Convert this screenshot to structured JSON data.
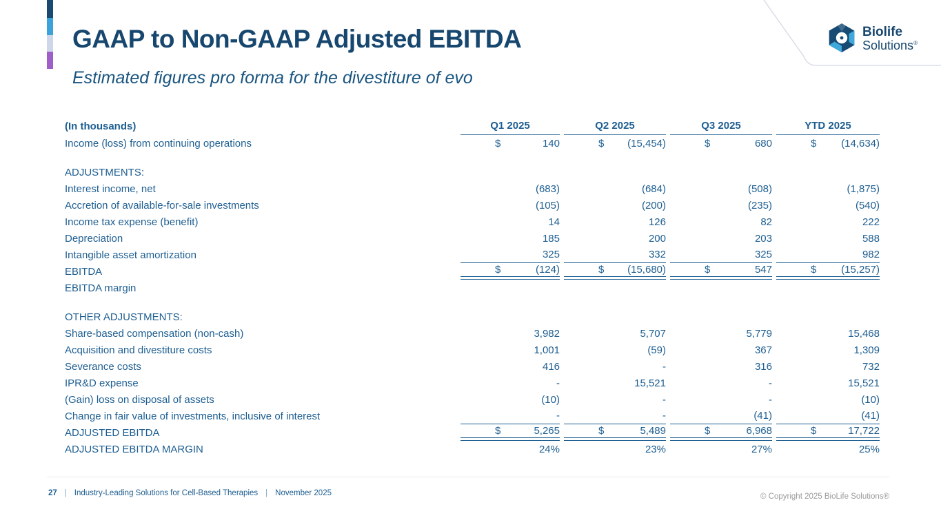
{
  "slide": {
    "title": "GAAP to Non-GAAP Adjusted EBITDA",
    "subtitle": "Estimated figures pro forma for the divestiture of evo"
  },
  "logo": {
    "icon": "biolife-hexagon-icon",
    "line1": "Biolife",
    "line2": "Solutions",
    "registered_mark": "®"
  },
  "table": {
    "unit_label": "(In thousands)",
    "columns": [
      "Q1 2025",
      "Q2 2025",
      "Q3 2025",
      "YTD 2025"
    ],
    "rows": [
      {
        "type": "money",
        "label": "Income (loss) from continuing operations",
        "values": [
          "140",
          "(15,454)",
          "680",
          "(14,634)"
        ]
      },
      {
        "type": "spacer"
      },
      {
        "type": "section",
        "label": "ADJUSTMENTS:"
      },
      {
        "type": "plain",
        "label": "Interest income, net",
        "values": [
          "(683)",
          "(684)",
          "(508)",
          "(1,875)"
        ]
      },
      {
        "type": "plain",
        "label": "Accretion of available-for-sale investments",
        "values": [
          "(105)",
          "(200)",
          "(235)",
          "(540)"
        ]
      },
      {
        "type": "plain",
        "label": "Income tax expense (benefit)",
        "values": [
          "14",
          "126",
          "82",
          "222"
        ]
      },
      {
        "type": "plain",
        "label": "Depreciation",
        "values": [
          "185",
          "200",
          "203",
          "588"
        ]
      },
      {
        "type": "plain",
        "label": "Intangible asset amortization",
        "values": [
          "325",
          "332",
          "325",
          "982"
        ],
        "rule_bottom": true
      },
      {
        "type": "total",
        "label": "EBITDA",
        "values": [
          "(124)",
          "(15,680)",
          "547",
          "(15,257)"
        ]
      },
      {
        "type": "label-only",
        "label": "EBITDA margin"
      },
      {
        "type": "spacer"
      },
      {
        "type": "section",
        "label": "OTHER ADJUSTMENTS:"
      },
      {
        "type": "plain",
        "label": "Share-based compensation (non-cash)",
        "values": [
          "3,982",
          "5,707",
          "5,779",
          "15,468"
        ]
      },
      {
        "type": "plain",
        "label": "Acquisition and divestiture costs",
        "values": [
          "1,001",
          "(59)",
          "367",
          "1,309"
        ]
      },
      {
        "type": "plain",
        "label": "Severance costs",
        "values": [
          "416",
          "-",
          "316",
          "732"
        ]
      },
      {
        "type": "plain",
        "label": "IPR&D expense",
        "values": [
          "-",
          "15,521",
          "-",
          "15,521"
        ]
      },
      {
        "type": "plain",
        "label": "(Gain) loss on disposal of assets",
        "values": [
          "(10)",
          "-",
          "-",
          "(10)"
        ]
      },
      {
        "type": "plain",
        "label": "Change in fair value of investments, inclusive of interest",
        "values": [
          "-",
          "-",
          "(41)",
          "(41)"
        ],
        "rule_bottom": true
      },
      {
        "type": "total",
        "label": "ADJUSTED EBITDA",
        "values": [
          "5,265",
          "5,489",
          "6,968",
          "17,722"
        ]
      },
      {
        "type": "percent",
        "label": "ADJUSTED EBITDA MARGIN",
        "values": [
          "24%",
          "23%",
          "27%",
          "25%"
        ]
      }
    ],
    "currency_symbol": "$"
  },
  "footer": {
    "page_number": "27",
    "tagline": "Industry-Leading Solutions for Cell-Based Therapies",
    "date": "November 2025",
    "copyright": "© Copyright 2025 BioLife Solutions®"
  },
  "colors": {
    "title_navy": "#17476E",
    "table_blue": "#1D5E91",
    "accent_bar": [
      "#1B4A70",
      "#3BA3DA",
      "#CDD7E9",
      "#9F5FC8"
    ],
    "accent_bar_heights": [
      26,
      25,
      24,
      25
    ],
    "panel_border": "#D9DDE8",
    "footer_gray": "#9B9B9B",
    "logo_navy": "#174B73",
    "logo_light_blue": "#3FA9DC"
  }
}
